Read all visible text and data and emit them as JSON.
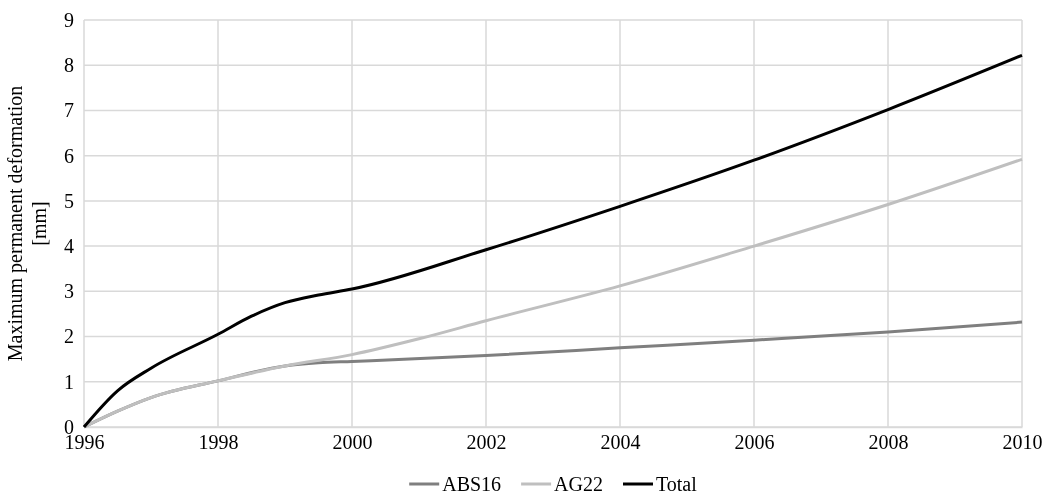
{
  "chart_data": {
    "type": "line",
    "ylabel": "Maximum permanent deformation [mm]",
    "xlim": [
      1996,
      2010
    ],
    "xticks": [
      1996,
      1998,
      2000,
      2002,
      2004,
      2006,
      2008,
      2010
    ],
    "ylim": [
      0,
      9
    ],
    "yticks": [
      0,
      1,
      2,
      3,
      4,
      5,
      6,
      7,
      8,
      9
    ],
    "grid": true,
    "legend": "bottom",
    "line_style": "solid",
    "marker": "none",
    "series": [
      {
        "name": "ABS16",
        "color": "#7f7f7f",
        "x": [
          1996,
          1996.5,
          1997,
          1998,
          1999,
          1999.5,
          2000,
          2002,
          2004,
          2006,
          2008,
          2010
        ],
        "values": [
          0,
          0.35,
          0.65,
          1.02,
          1.35,
          1.42,
          1.45,
          1.58,
          1.75,
          1.92,
          2.1,
          2.32
        ]
      },
      {
        "name": "AG22",
        "color": "#bfbfbf",
        "x": [
          1996,
          1996.5,
          1997,
          1998,
          1999,
          2000,
          2001,
          2002,
          2004,
          2006,
          2008,
          2010
        ],
        "values": [
          0,
          0.35,
          0.65,
          1.02,
          1.35,
          1.6,
          1.95,
          2.35,
          3.12,
          4.0,
          4.92,
          5.92
        ]
      },
      {
        "name": "Total",
        "color": "#000000",
        "x": [
          1996,
          1996.5,
          1997,
          1998,
          1998.5,
          1999,
          1999.5,
          2000,
          2002,
          2004,
          2006,
          2008,
          2010
        ],
        "values": [
          0,
          0.8,
          1.3,
          2.05,
          2.45,
          2.75,
          2.92,
          3.05,
          3.92,
          4.88,
          5.9,
          7.02,
          8.22
        ]
      }
    ]
  }
}
